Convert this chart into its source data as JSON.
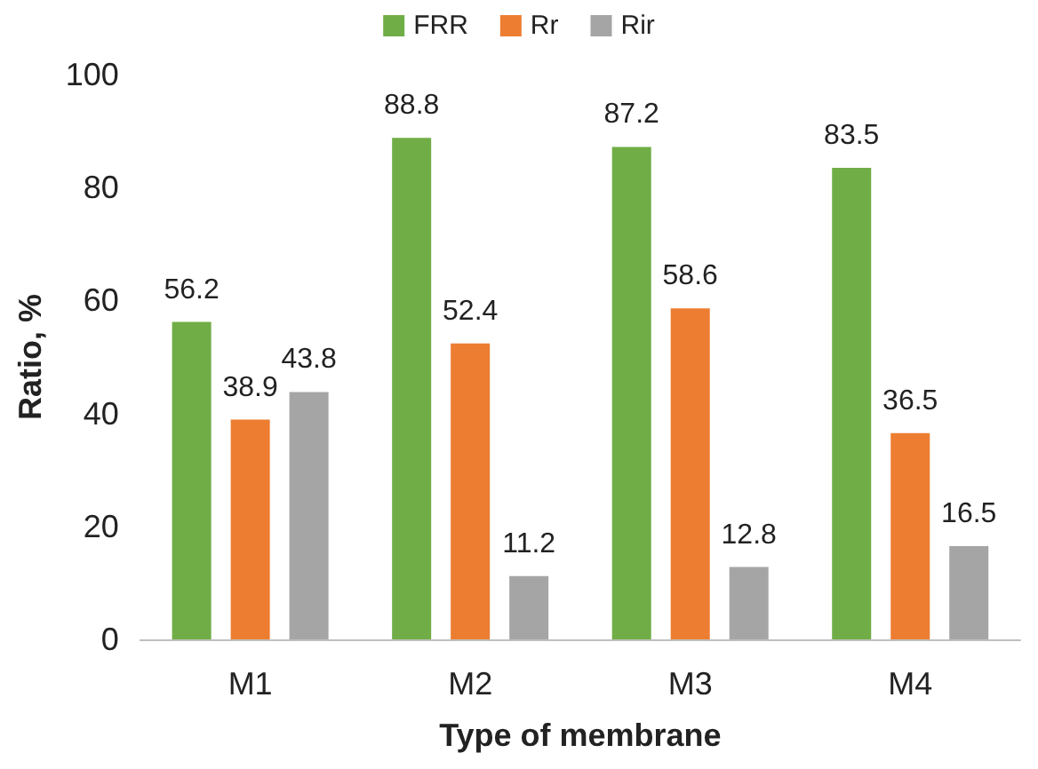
{
  "chart_data": {
    "type": "bar",
    "xlabel": "Type of membrane",
    "ylabel": "Ratio, %",
    "categories": [
      "M1",
      "M2",
      "M3",
      "M4"
    ],
    "series": [
      {
        "name": "FRR",
        "color": "#70ad47",
        "values": [
          56.2,
          88.8,
          87.2,
          83.5
        ]
      },
      {
        "name": "Rr",
        "color": "#ed7d31",
        "values": [
          38.9,
          52.4,
          58.6,
          36.5
        ]
      },
      {
        "name": "Rir",
        "color": "#a5a5a5",
        "values": [
          43.8,
          11.2,
          12.8,
          16.5
        ]
      }
    ],
    "ylim": [
      0,
      100
    ],
    "yticks": [
      0,
      20,
      40,
      60,
      80,
      100
    ],
    "grid": false,
    "legend": "top",
    "data_labels": true
  }
}
